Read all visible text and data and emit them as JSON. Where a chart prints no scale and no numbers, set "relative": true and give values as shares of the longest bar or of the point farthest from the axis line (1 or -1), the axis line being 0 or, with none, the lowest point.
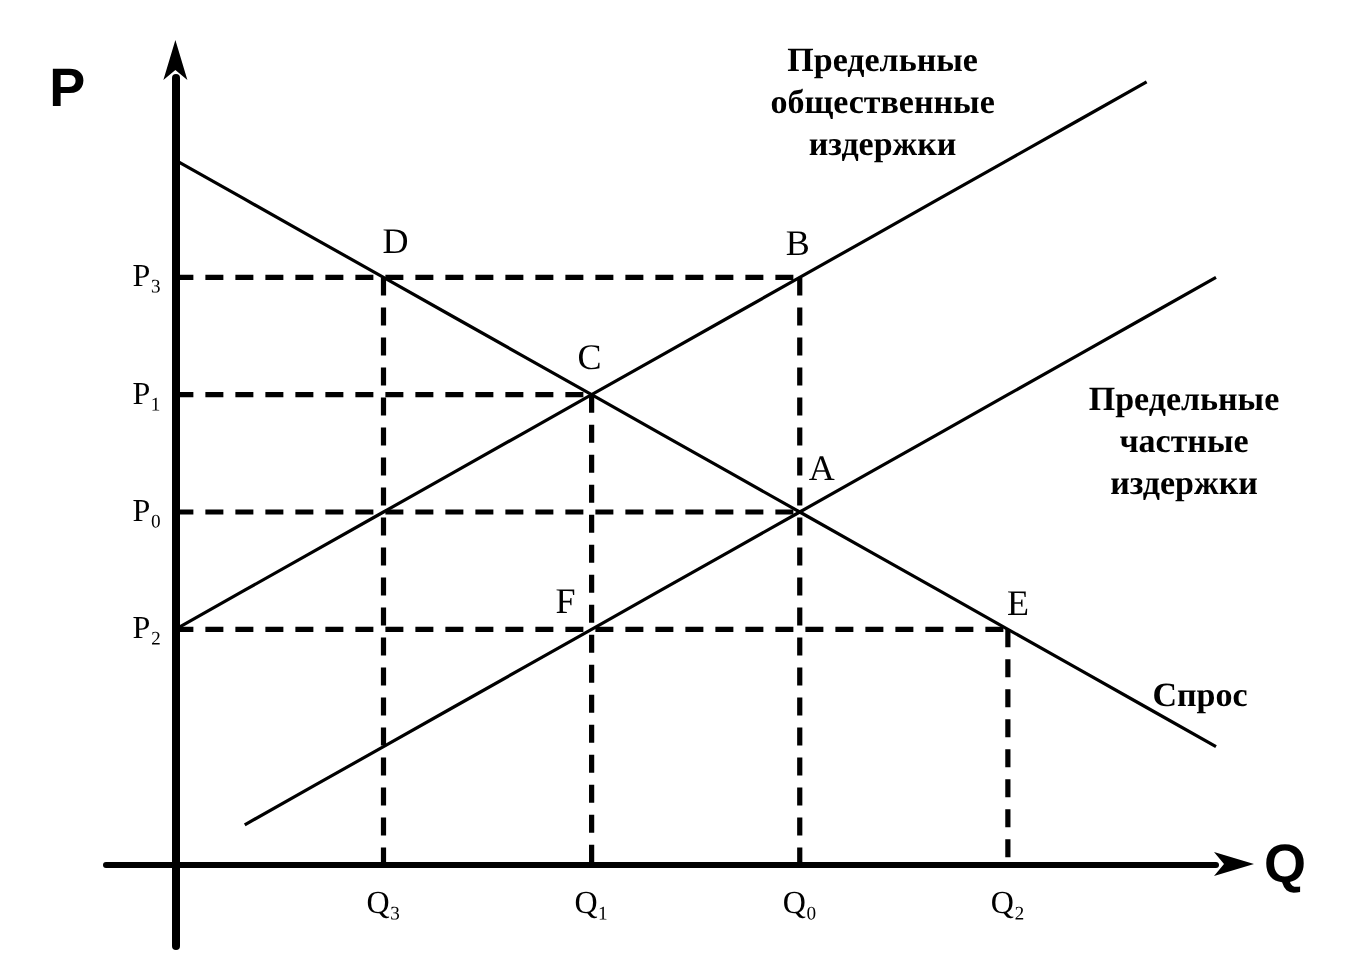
{
  "chart_data": {
    "type": "line",
    "relative": true,
    "xlabel": "Q",
    "ylabel": "P",
    "marker": "none",
    "categories": [
      null,
      null,
      null,
      null,
      "Q₃",
      null,
      null,
      "Q₁",
      null,
      null,
      "Q₀",
      null,
      null,
      "Q₂",
      null,
      null,
      null
    ],
    "series": [
      {
        "name": "Предельные общественные издержки",
        "color": "#000000",
        "values": [
          null,
          0.3,
          0.35,
          0.4,
          0.45,
          0.5,
          0.55,
          0.6,
          0.65,
          0.7,
          0.75,
          0.8,
          0.85,
          0.9,
          0.95,
          1.0,
          null
        ]
      },
      {
        "name": "Предельные частные издержки",
        "color": "#000000",
        "values": [
          null,
          null,
          0.05,
          0.1,
          0.15,
          0.2,
          0.25,
          0.3,
          0.35,
          0.4,
          0.45,
          0.5,
          0.55,
          0.6,
          0.65,
          0.7,
          0.75
        ]
      },
      {
        "name": "Спрос",
        "color": "#000000",
        "values": [
          null,
          0.9,
          0.85,
          0.8,
          0.75,
          0.7,
          0.65,
          0.6,
          0.55,
          0.5,
          0.45,
          0.4,
          0.35,
          0.3,
          0.25,
          0.2,
          0.15
        ]
      },
      {
        "name": "P₃",
        "color": "#000000",
        "line_style": "dashed",
        "values": [
          null,
          0.75,
          0.75,
          0.75,
          0.75,
          0.75,
          0.75,
          0.75,
          0.75,
          0.75,
          0.75,
          null,
          null,
          null,
          null,
          null,
          null
        ]
      },
      {
        "name": "P₁",
        "color": "#000000",
        "line_style": "dashed",
        "values": [
          null,
          0.6,
          0.6,
          0.6,
          0.6,
          0.6,
          0.6,
          0.6,
          null,
          null,
          null,
          null,
          null,
          null,
          null,
          null,
          null
        ]
      },
      {
        "name": "P₀",
        "color": "#000000",
        "line_style": "dashed",
        "values": [
          null,
          0.45,
          0.45,
          0.45,
          0.45,
          0.45,
          0.45,
          0.45,
          0.45,
          0.45,
          0.45,
          null,
          null,
          null,
          null,
          null,
          null
        ]
      },
      {
        "name": "P₂",
        "color": "#000000",
        "line_style": "dashed",
        "values": [
          null,
          0.3,
          0.3,
          0.3,
          0.3,
          0.3,
          0.3,
          0.3,
          0.3,
          0.3,
          0.3,
          0.3,
          0.3,
          0.3,
          null,
          null,
          null
        ]
      },
      {
        "color": "#000000",
        "line_style": "dashed",
        "x": [
          "Q₃",
          "Q₃"
        ],
        "values": [
          0.75,
          0
        ]
      },
      {
        "color": "#000000",
        "line_style": "dashed",
        "x": [
          "Q₁",
          "Q₁"
        ],
        "values": [
          0.6,
          0
        ]
      },
      {
        "color": "#000000",
        "line_style": "dashed",
        "x": [
          "Q₀",
          "Q₀"
        ],
        "values": [
          0.75,
          0
        ]
      },
      {
        "color": "#000000",
        "line_style": "dashed",
        "x": [
          "Q₂",
          "Q₂"
        ],
        "values": [
          0.3,
          0
        ]
      }
    ],
    "annotations": [
      {
        "text": "D",
        "x": "Q₃",
        "y": 0.75
      },
      {
        "text": "B",
        "x": "Q₀",
        "y": 0.75
      },
      {
        "text": "C",
        "x": "Q₁",
        "y": 0.6
      },
      {
        "text": "A",
        "x": "Q₀",
        "y": 0.45
      },
      {
        "text": "F",
        "x": "Q₁",
        "y": 0.3
      },
      {
        "text": "E",
        "x": "Q₂",
        "y": 0.3
      }
    ]
  }
}
